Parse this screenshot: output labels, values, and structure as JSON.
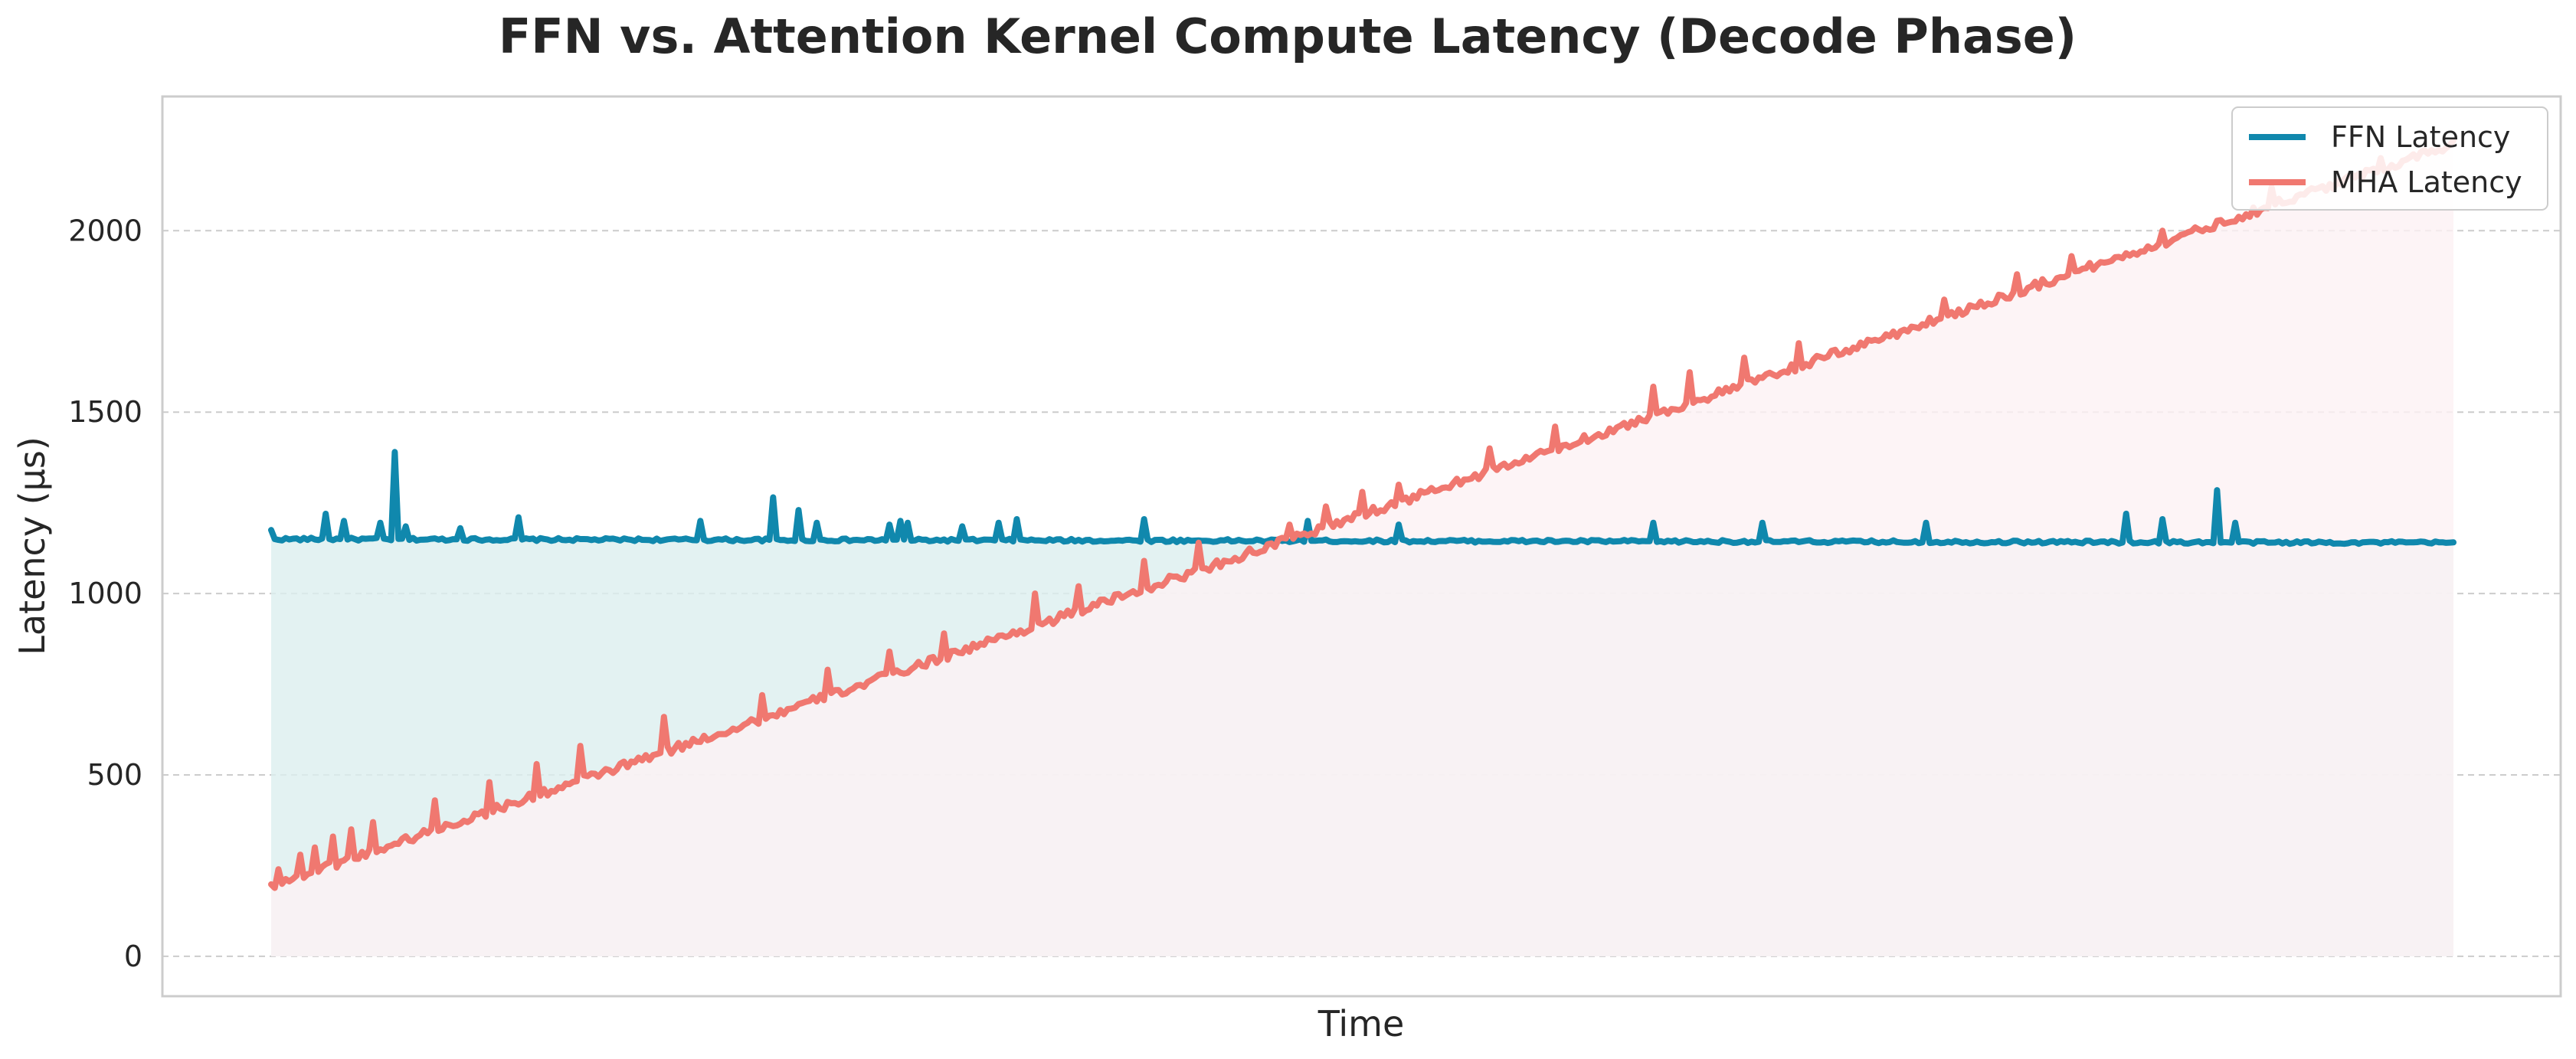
{
  "chart_data": {
    "type": "line",
    "title": "FFN vs. Attention Kernel Compute Latency (Decode Phase)",
    "xlabel": "Time",
    "ylabel": "Latency (µs)",
    "ylim": [
      -110,
      2370
    ],
    "yticks": [
      0,
      500,
      1000,
      1500,
      2000
    ],
    "xticks": [],
    "grid": "horizontal dashed",
    "legend_position": "top-right",
    "x": {
      "start": 0,
      "end": 600,
      "step": 1
    },
    "series": [
      {
        "name": "FFN Latency",
        "color": "#1088ad",
        "fill_color": "#dcefef",
        "baseline": 1150,
        "start": 1150,
        "end": 1140,
        "noise": 4,
        "spikes": [
          [
            0,
            1175
          ],
          [
            15,
            1220
          ],
          [
            20,
            1200
          ],
          [
            30,
            1195
          ],
          [
            34,
            1390
          ],
          [
            37,
            1185
          ],
          [
            52,
            1180
          ],
          [
            68,
            1210
          ],
          [
            118,
            1200
          ],
          [
            138,
            1265
          ],
          [
            145,
            1230
          ],
          [
            150,
            1195
          ],
          [
            170,
            1190
          ],
          [
            173,
            1200
          ],
          [
            175,
            1195
          ],
          [
            190,
            1185
          ],
          [
            200,
            1195
          ],
          [
            205,
            1205
          ],
          [
            240,
            1205
          ],
          [
            285,
            1200
          ],
          [
            310,
            1190
          ],
          [
            380,
            1195
          ],
          [
            410,
            1195
          ],
          [
            455,
            1195
          ],
          [
            510,
            1220
          ],
          [
            520,
            1205
          ],
          [
            535,
            1285
          ],
          [
            540,
            1195
          ]
        ]
      },
      {
        "name": "MHA Latency",
        "color": "#f07870",
        "fill_color": "#fdf1f4",
        "start": 195,
        "end": 2240,
        "noise": 12,
        "spikes": [
          [
            2,
            240
          ],
          [
            8,
            280
          ],
          [
            12,
            300
          ],
          [
            17,
            330
          ],
          [
            22,
            350
          ],
          [
            28,
            370
          ],
          [
            45,
            430
          ],
          [
            60,
            480
          ],
          [
            73,
            530
          ],
          [
            85,
            580
          ],
          [
            108,
            660
          ],
          [
            135,
            720
          ],
          [
            153,
            790
          ],
          [
            170,
            840
          ],
          [
            185,
            890
          ],
          [
            210,
            1000
          ],
          [
            222,
            1020
          ],
          [
            240,
            1090
          ],
          [
            255,
            1140
          ],
          [
            280,
            1190
          ],
          [
            290,
            1240
          ],
          [
            300,
            1280
          ],
          [
            310,
            1300
          ],
          [
            335,
            1400
          ],
          [
            353,
            1460
          ],
          [
            380,
            1570
          ],
          [
            390,
            1610
          ],
          [
            405,
            1650
          ],
          [
            420,
            1690
          ],
          [
            460,
            1810
          ],
          [
            480,
            1880
          ],
          [
            495,
            1930
          ],
          [
            520,
            2000
          ],
          [
            550,
            2120
          ],
          [
            580,
            2200
          ]
        ]
      }
    ]
  }
}
